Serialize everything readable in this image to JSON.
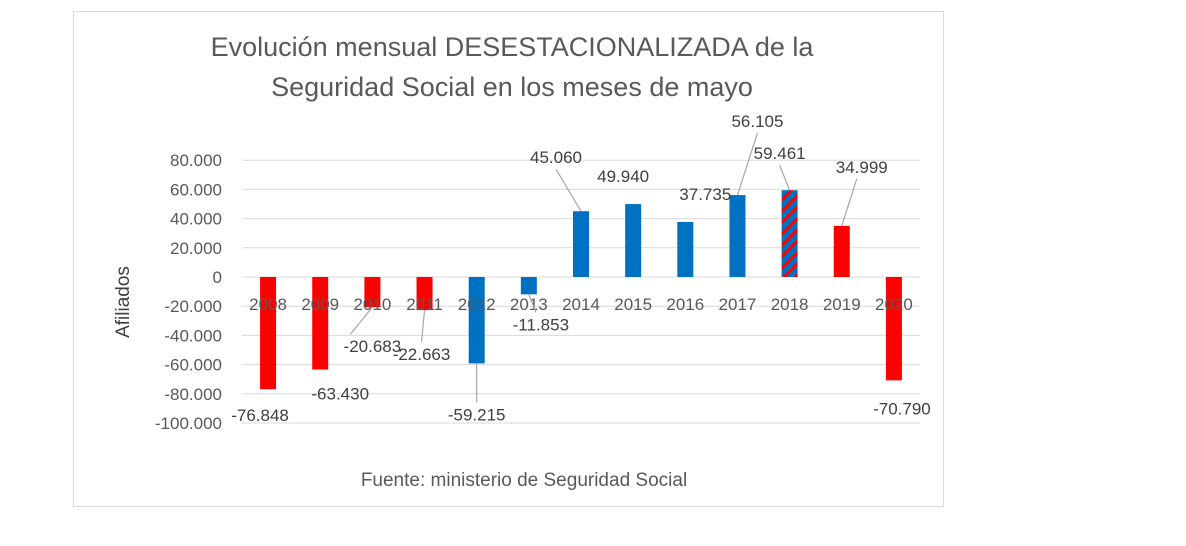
{
  "chart_data": {
    "type": "bar",
    "title_lines": [
      "Evolución mensual DESESTACIONALIZADA de la",
      "Seguridad Social en los meses de mayo"
    ],
    "ylabel": "Afiliados",
    "xlabel": "",
    "source": "Fuente: ministerio de Seguridad Social",
    "ylim": [
      -100000,
      80000
    ],
    "yticks": [
      80000,
      60000,
      40000,
      20000,
      0,
      -20000,
      -40000,
      -60000,
      -80000,
      -100000
    ],
    "ytick_labels": [
      "80.000",
      "60.000",
      "40.000",
      "20.000",
      "0",
      "-20.000",
      "-40.000",
      "-60.000",
      "-80.000",
      "-100.000"
    ],
    "categories": [
      "2008",
      "2009",
      "2010",
      "2011",
      "2012",
      "2013",
      "2014",
      "2015",
      "2016",
      "2017",
      "2018",
      "2019",
      "2020"
    ],
    "values": [
      -76848,
      -63430,
      -20683,
      -22663,
      -59215,
      -11853,
      45060,
      49940,
      37735,
      56105,
      59461,
      34999,
      -70790
    ],
    "labels": [
      "-76.848",
      "-63.430",
      "-20.683",
      "-22.663",
      "-59.215",
      "-11.853",
      "45.060",
      "49.940",
      "37.735",
      "56.105",
      "59.461",
      "34.999",
      "-70.790"
    ],
    "bar_colors": [
      "#ff0000",
      "#ff0000",
      "#ff0000",
      "#ff0000",
      "#0070c0",
      "#0070c0",
      "#0070c0",
      "#0070c0",
      "#0070c0",
      "#0070c0",
      "hatched",
      "#ff0000",
      "#ff0000"
    ],
    "colors": {
      "red": "#ff0000",
      "blue": "#0070c0"
    },
    "grid": true
  }
}
